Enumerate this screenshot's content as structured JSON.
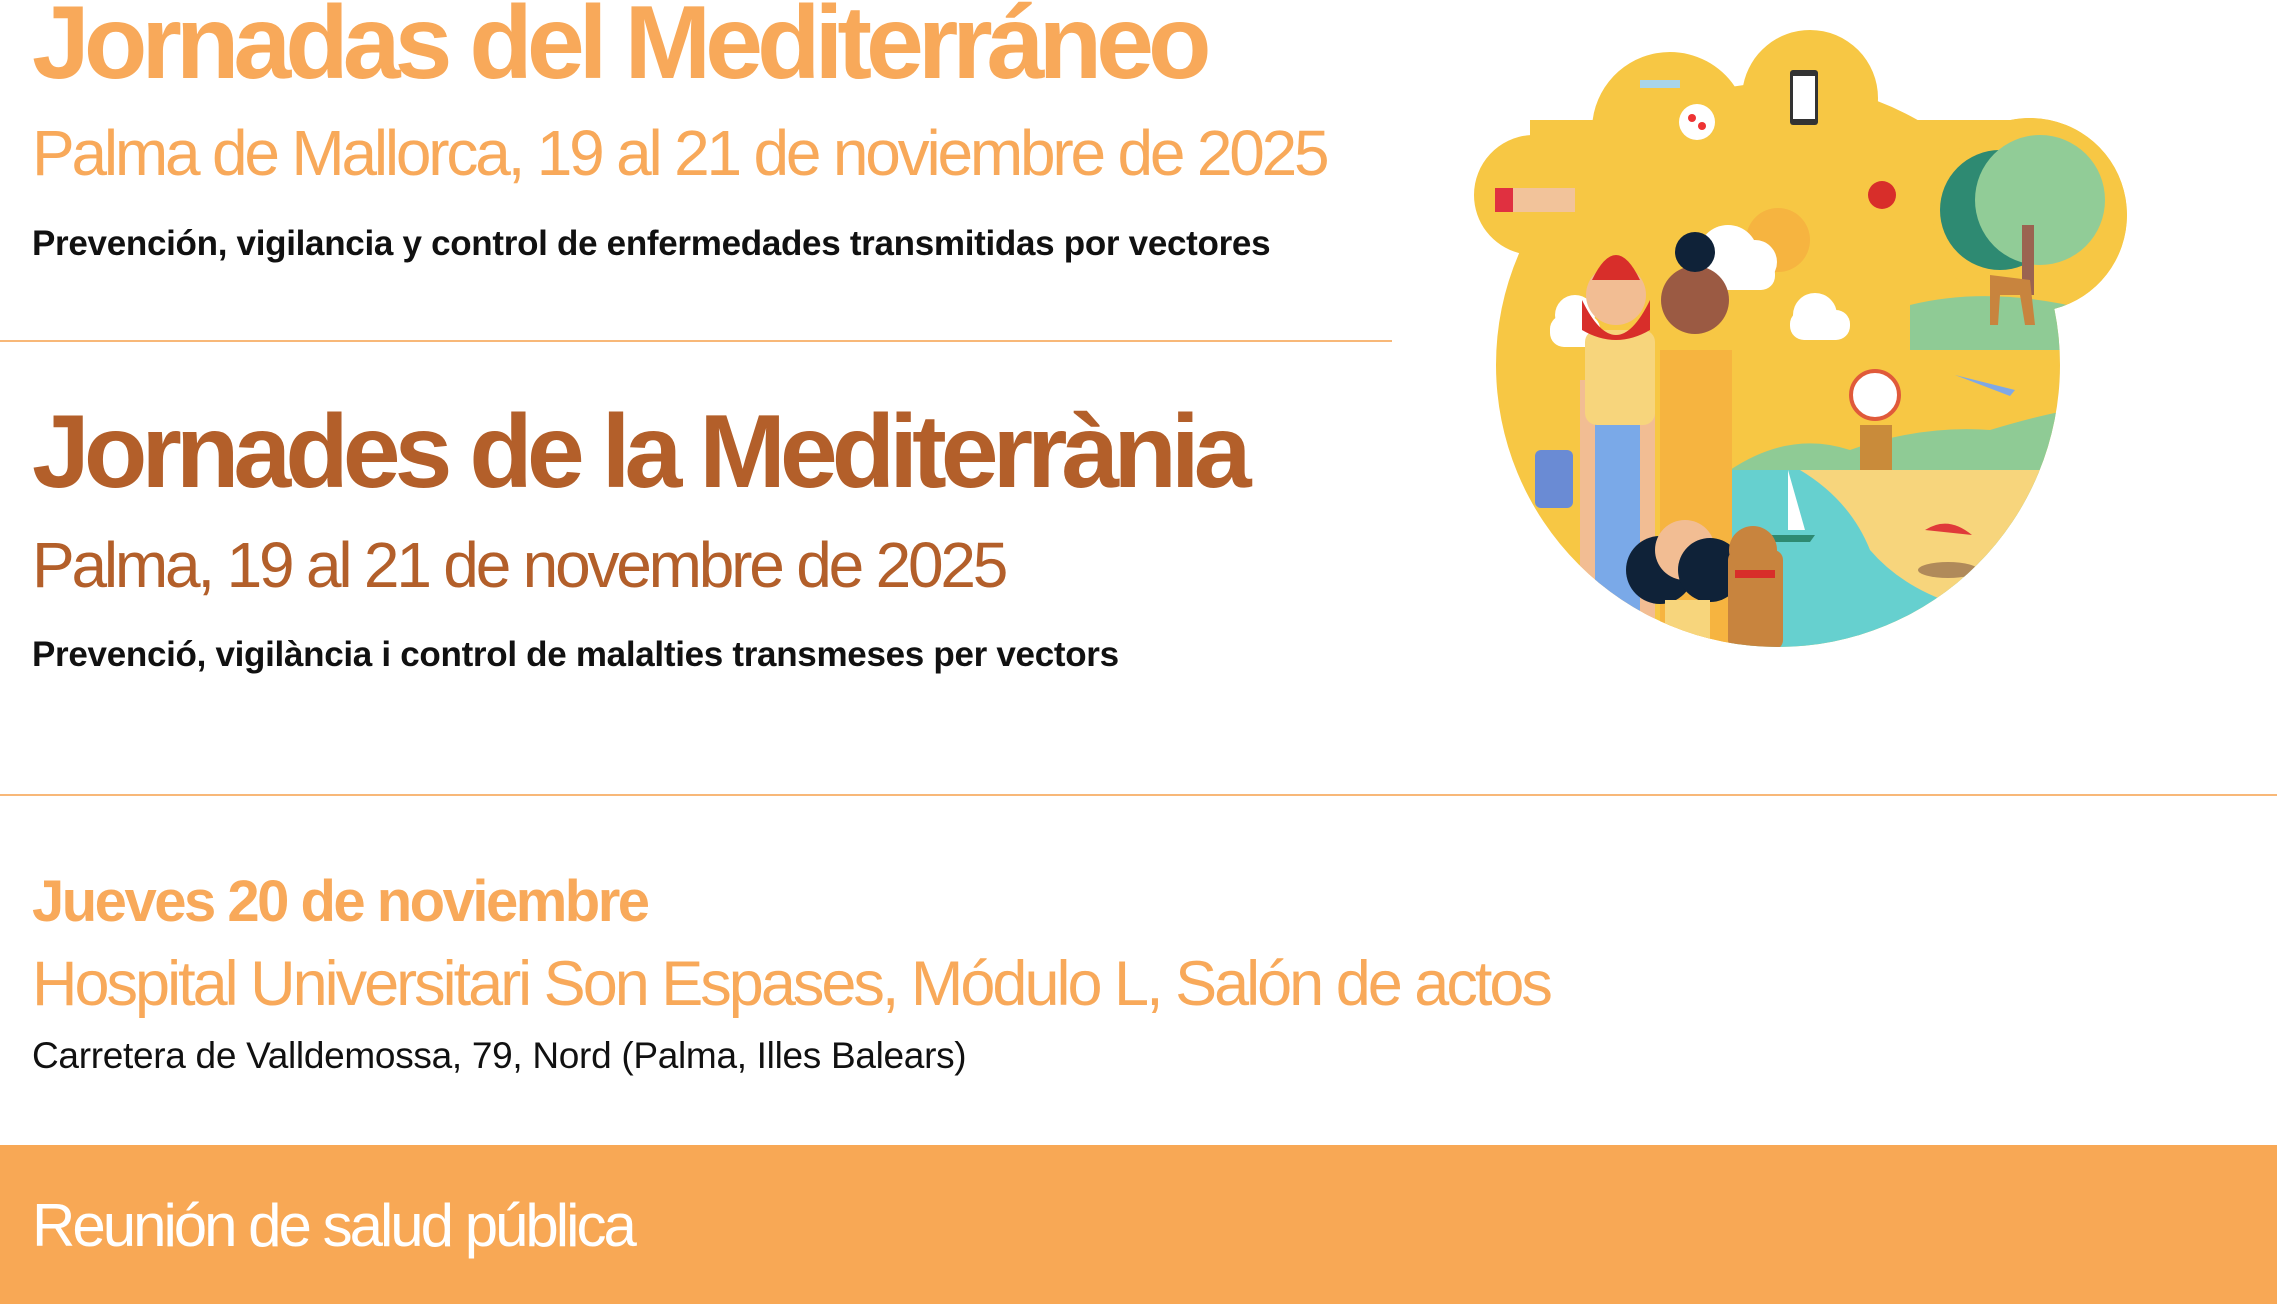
{
  "spanish": {
    "title": "Jornadas del Mediterráneo",
    "subtitle": "Palma de Mallorca, 19 al 21 de noviembre de 2025",
    "description": "Prevención, vigilancia y control de enfermedades transmitidas por vectores"
  },
  "catalan": {
    "title": "Jornades de la Mediterrània",
    "subtitle": "Palma, 19 al 21 de novembre de 2025",
    "description": "Prevenció, vigilància i control de malalties transmeses per vectors"
  },
  "session": {
    "day": "Jueves 20 de noviembre",
    "venue": "Hospital Universitari Son Espases, Módulo L, Salón de actos",
    "address": "Carretera de Valldemossa, 79, Nord (Palma, Illes Balears)"
  },
  "footer": {
    "label": "Reunión de salud pública"
  },
  "colors": {
    "accent": "#f8a95a",
    "accent_dark": "#b35f2a",
    "footer_bg": "#f8a855",
    "illustration_yellow": "#f7c744",
    "sea": "#66d0cf"
  },
  "illustration": {
    "icons": [
      "microscope-icon",
      "virus-icon",
      "phone-map-icon",
      "tick-on-arm-icon",
      "cardinal-bird-icon",
      "tree-icon",
      "horse-icon",
      "cow-icon",
      "mosquito-icon",
      "repellent-icon",
      "windmill-icon",
      "airplane-icon",
      "sailboat-icon",
      "beach-umbrella-icon",
      "dog-icon",
      "people-icon",
      "sun-icon",
      "cloud-icon"
    ]
  }
}
